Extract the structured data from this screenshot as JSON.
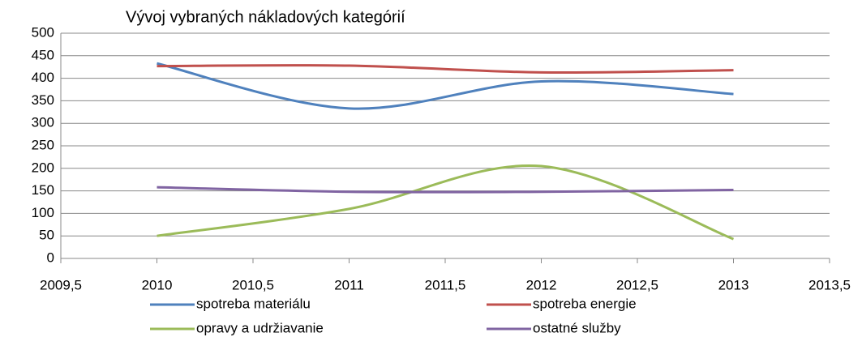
{
  "chart_data": {
    "type": "line",
    "title": "Vývoj vybraných nákladových kategórií",
    "x": [
      2010,
      2011,
      2012,
      2013
    ],
    "series": [
      {
        "name": "spotreba materiálu",
        "color": "#4f81bd",
        "values": [
          433,
          333,
          393,
          365
        ]
      },
      {
        "name": "spotreba energie",
        "color": "#c0504d",
        "values": [
          427,
          428,
          413,
          418
        ]
      },
      {
        "name": "opravy a udržiavanie",
        "color": "#9bbb59",
        "values": [
          50,
          110,
          205,
          43
        ]
      },
      {
        "name": "ostatné služby",
        "color": "#8064a2",
        "values": [
          158,
          148,
          148,
          152
        ]
      }
    ],
    "xlim": [
      2009.5,
      2013.5
    ],
    "xticks": [
      {
        "value": 2009.5,
        "label": "2009,5"
      },
      2010,
      {
        "value": 2010.5,
        "label": "2010,5"
      },
      2011,
      {
        "value": 2011.5,
        "label": "2011,5"
      },
      2012,
      {
        "value": 2012.5,
        "label": "2012,5"
      },
      2013,
      {
        "value": 2013.5,
        "label": "2013,5"
      }
    ],
    "ylim": [
      0,
      500
    ],
    "yticks": [
      0,
      50,
      100,
      150,
      200,
      250,
      300,
      350,
      400,
      450,
      500
    ],
    "grid": true,
    "smooth": true,
    "legend": "bottom"
  }
}
